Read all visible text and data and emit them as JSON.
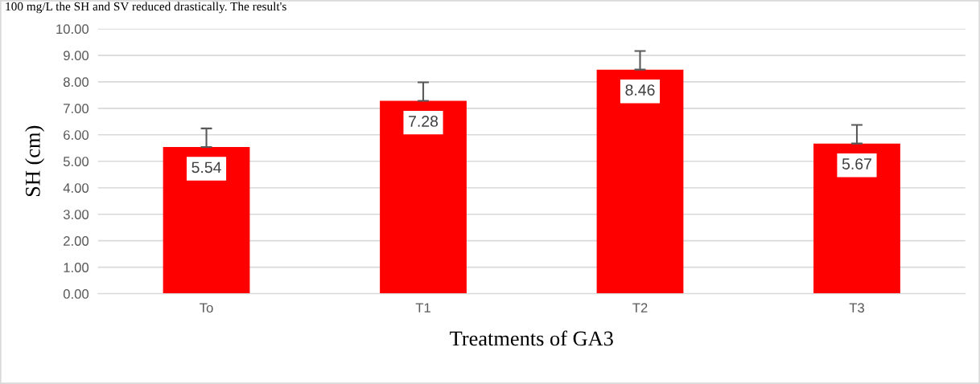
{
  "chart_data": {
    "type": "bar",
    "xlabel": "Treatments of GA3",
    "ylabel": "SH (cm)",
    "categories": [
      "To",
      "T1",
      "T2",
      "T3"
    ],
    "values": [
      5.54,
      7.28,
      8.46,
      5.67
    ],
    "errors": [
      0.7,
      0.7,
      0.7,
      0.7
    ],
    "color": "#ff0000",
    "ylim": [
      0,
      10
    ],
    "yticks": [
      {
        "value": 0,
        "label": "0.00"
      },
      {
        "value": 1,
        "label": "1.00"
      },
      {
        "value": 2,
        "label": "2.00"
      },
      {
        "value": 3,
        "label": "3.00"
      },
      {
        "value": 4,
        "label": "4.00"
      },
      {
        "value": 5,
        "label": "5.00"
      },
      {
        "value": 6,
        "label": "6.00"
      },
      {
        "value": 7,
        "label": "7.00"
      },
      {
        "value": 8,
        "label": "8.00"
      },
      {
        "value": 9,
        "label": "9.00"
      },
      {
        "value": 10,
        "label": "10.00"
      }
    ],
    "grid": "y",
    "data_labels": true,
    "annotations": [
      "100 mg/L the SH and SV reduced drastically. The result's"
    ]
  }
}
